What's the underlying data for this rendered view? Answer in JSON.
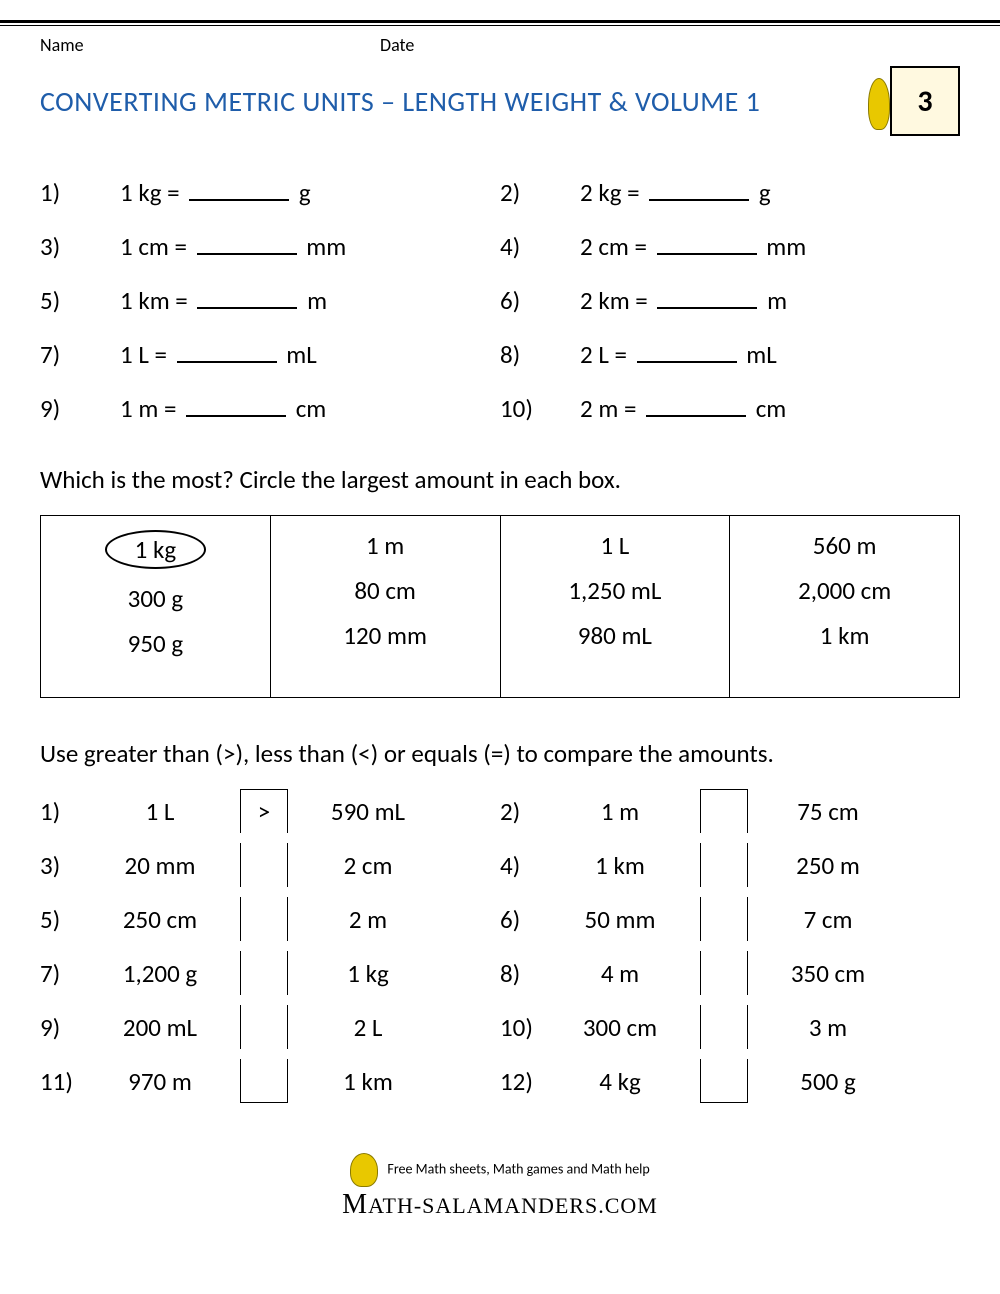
{
  "header": {
    "name_label": "Name",
    "date_label": "Date",
    "title": "CONVERTING METRIC UNITS – LENGTH WEIGHT & VOLUME 1",
    "grade": "3",
    "title_color": "#1f5daa"
  },
  "conversions": [
    {
      "num": "1)",
      "left": "1 kg =",
      "right": "g"
    },
    {
      "num": "2)",
      "left": "2 kg =",
      "right": "g"
    },
    {
      "num": "3)",
      "left": "1 cm =",
      "right": "mm"
    },
    {
      "num": "4)",
      "left": "2 cm =",
      "right": "mm"
    },
    {
      "num": "5)",
      "left": "1 km =",
      "right": "m"
    },
    {
      "num": "6)",
      "left": "2 km =",
      "right": "m"
    },
    {
      "num": "7)",
      "left": "1 L =",
      "right": "mL"
    },
    {
      "num": "8)",
      "left": "2 L =",
      "right": "mL"
    },
    {
      "num": "9)",
      "left": "1 m =",
      "right": "cm"
    },
    {
      "num": "10)",
      "left": "2 m =",
      "right": "cm"
    }
  ],
  "section2": {
    "instruction": "Which is the most? Circle the largest amount in each box.",
    "boxes": [
      {
        "values": [
          "1 kg",
          "300 g",
          "950 g"
        ],
        "circled_index": 0
      },
      {
        "values": [
          "1 m",
          "80 cm",
          "120 mm"
        ],
        "circled_index": -1
      },
      {
        "values": [
          "1 L",
          "1,250 mL",
          "980 mL"
        ],
        "circled_index": -1
      },
      {
        "values": [
          "560 m",
          "2,000 cm",
          "1 km"
        ],
        "circled_index": -1
      }
    ]
  },
  "section3": {
    "instruction": "Use greater than (>), less than (<) or equals (=) to compare the amounts.",
    "rows": [
      {
        "num": "1)",
        "a": "1 L",
        "op": ">",
        "b": "590 mL"
      },
      {
        "num": "2)",
        "a": "1 m",
        "op": "",
        "b": "75 cm"
      },
      {
        "num": "3)",
        "a": "20 mm",
        "op": "",
        "b": "2 cm"
      },
      {
        "num": "4)",
        "a": "1 km",
        "op": "",
        "b": "250 m"
      },
      {
        "num": "5)",
        "a": "250 cm",
        "op": "",
        "b": "2 m"
      },
      {
        "num": "6)",
        "a": "50 mm",
        "op": "",
        "b": "7 cm"
      },
      {
        "num": "7)",
        "a": "1,200 g",
        "op": "",
        "b": "1 kg"
      },
      {
        "num": "8)",
        "a": "4 m",
        "op": "",
        "b": "350 cm"
      },
      {
        "num": "9)",
        "a": "200 mL",
        "op": "",
        "b": "2 L"
      },
      {
        "num": "10)",
        "a": "300 cm",
        "op": "",
        "b": "3 m"
      },
      {
        "num": "11)",
        "a": "970 m",
        "op": "",
        "b": "1 km"
      },
      {
        "num": "12)",
        "a": "4 kg",
        "op": "",
        "b": "500 g"
      }
    ]
  },
  "footer": {
    "tagline": "Free Math sheets, Math games and Math help",
    "site": "ATH-SALAMANDERS.COM"
  }
}
